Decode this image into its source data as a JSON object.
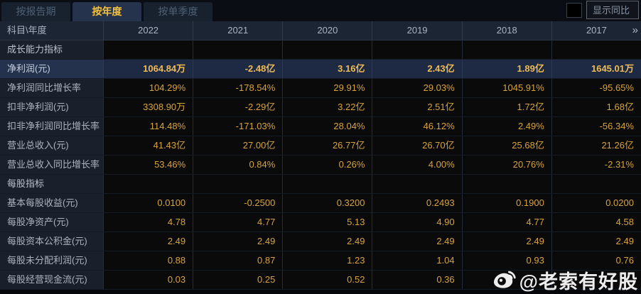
{
  "tabs": [
    {
      "label": "按报告期",
      "active": false
    },
    {
      "label": "按年度",
      "active": true
    },
    {
      "label": "按单季度",
      "active": false
    }
  ],
  "controls": {
    "show_yoy_label": "显示同比",
    "checkbox_checked": false
  },
  "table": {
    "corner_header": "科目\\年度",
    "year_columns": [
      "2022",
      "2021",
      "2020",
      "2019",
      "2018",
      "2017"
    ],
    "more_columns_glyph": "»",
    "rows": [
      {
        "type": "section",
        "highlight": false,
        "label": "成长能力指标",
        "values": [
          "",
          "",
          "",
          "",
          "",
          ""
        ]
      },
      {
        "type": "data",
        "highlight": true,
        "label": "净利润(元)",
        "values": [
          "1064.84万",
          "-2.48亿",
          "3.16亿",
          "2.43亿",
          "1.89亿",
          "1645.01万"
        ]
      },
      {
        "type": "data",
        "highlight": false,
        "label": "净利润同比增长率",
        "values": [
          "104.29%",
          "-178.54%",
          "29.91%",
          "29.03%",
          "1045.91%",
          "-95.65%"
        ]
      },
      {
        "type": "data",
        "highlight": false,
        "label": "扣非净利润(元)",
        "values": [
          "3308.90万",
          "-2.29亿",
          "3.22亿",
          "2.51亿",
          "1.72亿",
          "1.68亿"
        ]
      },
      {
        "type": "data",
        "highlight": false,
        "label": "扣非净利润同比增长率",
        "values": [
          "114.48%",
          "-171.03%",
          "28.04%",
          "46.12%",
          "2.49%",
          "-56.34%"
        ]
      },
      {
        "type": "data",
        "highlight": false,
        "label": "营业总收入(元)",
        "values": [
          "41.43亿",
          "27.00亿",
          "26.77亿",
          "26.70亿",
          "25.68亿",
          "21.26亿"
        ]
      },
      {
        "type": "data",
        "highlight": false,
        "label": "营业总收入同比增长率",
        "values": [
          "53.46%",
          "0.84%",
          "0.26%",
          "4.00%",
          "20.76%",
          "-2.31%"
        ]
      },
      {
        "type": "section",
        "highlight": false,
        "label": "每股指标",
        "values": [
          "",
          "",
          "",
          "",
          "",
          ""
        ]
      },
      {
        "type": "data",
        "highlight": false,
        "label": "基本每股收益(元)",
        "values": [
          "0.0100",
          "-0.2500",
          "0.3200",
          "0.2493",
          "0.1900",
          "0.0200"
        ]
      },
      {
        "type": "data",
        "highlight": false,
        "label": "每股净资产(元)",
        "values": [
          "4.78",
          "4.77",
          "5.13",
          "4.90",
          "4.77",
          "4.58"
        ]
      },
      {
        "type": "data",
        "highlight": false,
        "label": "每股资本公积金(元)",
        "values": [
          "2.49",
          "2.49",
          "2.49",
          "2.49",
          "2.49",
          "2.49"
        ]
      },
      {
        "type": "data",
        "highlight": false,
        "label": "每股未分配利润(元)",
        "values": [
          "0.88",
          "0.87",
          "1.23",
          "1.04",
          "0.93",
          "0.76"
        ]
      },
      {
        "type": "data",
        "highlight": false,
        "label": "每股经营现金流(元)",
        "values": [
          "0.03",
          "0.25",
          "0.52",
          "0.36",
          "",
          ""
        ]
      }
    ]
  },
  "watermark": {
    "text": "@老索有好股",
    "icon": "weibo-icon"
  },
  "colors": {
    "accent_gold": "#d8a33c",
    "highlight_row_bg": "#1e2a44",
    "active_tab_text": "#f2c240",
    "header_bg": "#1c2534",
    "data_cell_bg": "#0a0a0a"
  }
}
